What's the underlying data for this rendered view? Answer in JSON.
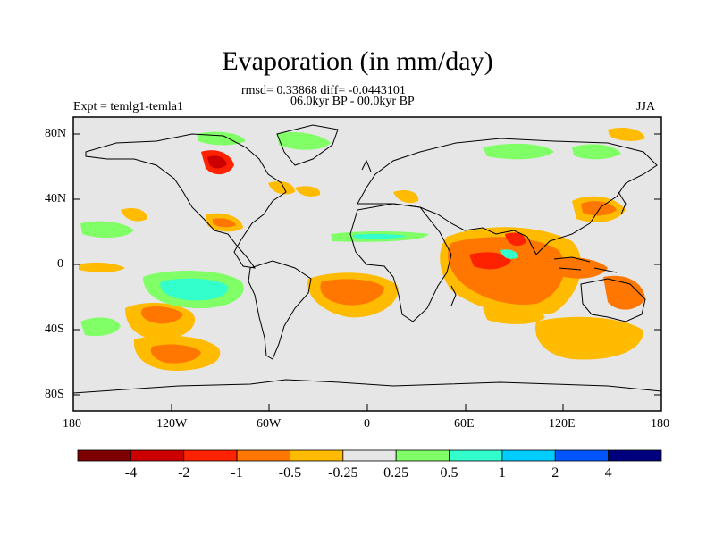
{
  "header": {
    "title": "Evaporation (in mm/day)",
    "stats": "rmsd= 0.33868 diff= -0.0443101",
    "period": "06.0kyr BP - 00.0kyr BP",
    "experiment": "Expt = temlg1-temla1",
    "season": "JJA"
  },
  "axes": {
    "lat_labels": [
      "80N",
      "40N",
      "0",
      "40S",
      "80S"
    ],
    "lon_labels": [
      "180",
      "120W",
      "60W",
      "0",
      "60E",
      "120E",
      "180"
    ]
  },
  "colorbar": {
    "colors": [
      "#7f0000",
      "#cc0000",
      "#ff2200",
      "#ff7700",
      "#ffbb00",
      "#e6e6e6",
      "#80ff66",
      "#33ffcc",
      "#00ccff",
      "#0055ff",
      "#00007f"
    ],
    "tick_labels": [
      "-4",
      "-2",
      "-1",
      "-0.5",
      "-0.25",
      "0.25",
      "0.5",
      "1",
      "2",
      "4"
    ]
  },
  "map": {
    "background": "#e6e6e6",
    "coastline_color": "#000000"
  }
}
